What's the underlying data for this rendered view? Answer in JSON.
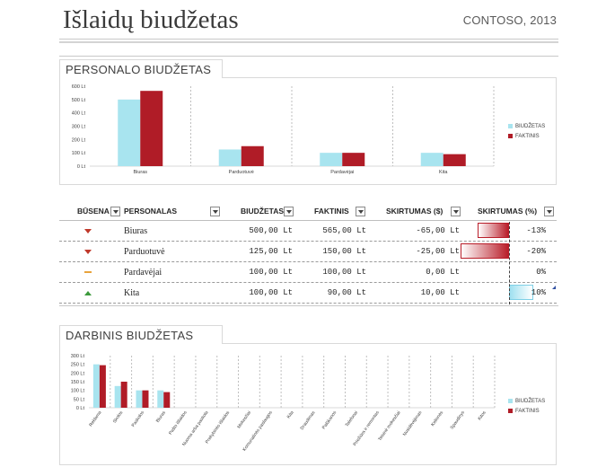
{
  "header": {
    "title": "Išlaidų biudžetas",
    "subtitle": "CONTOSO, 2013"
  },
  "colors": {
    "budget": "#a8e4ef",
    "actual": "#b01c27",
    "status_down": "#c0392b",
    "status_flat": "#e8a33d",
    "status_up": "#3c9a3c"
  },
  "personal_section": {
    "heading": "PERSONALO BIUDŽETAS"
  },
  "personal_chart": {
    "legend": [
      "BIUDŽETAS",
      "FAKTINIS"
    ]
  },
  "table": {
    "headers": {
      "status": "BŪSENA",
      "personnel": "PERSONALAS",
      "budget": "BIUDŽETAS",
      "actual": "FAKTINIS",
      "diff": "SKIRTUMAS ($)",
      "diff_pct": "SKIRTUMAS (%)"
    },
    "rows": [
      {
        "status": "down",
        "name": "Biuras",
        "budget": "500,00 Lt",
        "actual": "565,00 Lt",
        "diff": "-65,00 Lt",
        "pct": "-13%",
        "pct_value": -13
      },
      {
        "status": "down",
        "name": "Parduotuvė",
        "budget": "125,00 Lt",
        "actual": "150,00 Lt",
        "diff": "-25,00 Lt",
        "pct": "-20%",
        "pct_value": -20
      },
      {
        "status": "flat",
        "name": "Pardavėjai",
        "budget": "100,00 Lt",
        "actual": "100,00 Lt",
        "diff": "0,00 Lt",
        "pct": "0%",
        "pct_value": 0
      },
      {
        "status": "up",
        "name": "Kita",
        "budget": "100,00 Lt",
        "actual": "90,00 Lt",
        "diff": "10,00 Lt",
        "pct": "10%",
        "pct_value": 10
      }
    ]
  },
  "operating_section": {
    "heading": "DARBINIS BIUDŽETAS"
  },
  "operating_chart": {
    "legend": [
      "BIUDŽETAS",
      "FAKTINIS"
    ]
  },
  "chart_data": [
    {
      "type": "bar",
      "categories": [
        "Biuras",
        "Parduotuvė",
        "Pardavėjai",
        "Kita"
      ],
      "series": [
        {
          "name": "BIUDŽETAS",
          "values": [
            500,
            125,
            100,
            100
          ]
        },
        {
          "name": "FAKTINIS",
          "values": [
            565,
            150,
            100,
            90
          ]
        }
      ],
      "ylim": [
        0,
        600
      ],
      "yticks": [
        "600 Lt",
        "500 Lt",
        "400 Lt",
        "300 Lt",
        "200 Lt",
        "100 Lt",
        "0 Lt"
      ],
      "grid": false,
      "legend": "right"
    },
    {
      "type": "bar",
      "categories": [
        "Reklama",
        "Skolos",
        "Paskolos",
        "Biuras",
        "Pašto išlaidos",
        "Nuoma arba paskola",
        "Prekybinės išlaidos",
        "Mokesčiai",
        "Komunalinės paslaugos",
        "Kita",
        "Draudimas",
        "Palūkanos",
        "Telefonai",
        "Priežiūra ir remontas",
        "Teisinė mokesčiai",
        "Nusidėvėjimas",
        "Kelionės",
        "Spaudinys",
        "Kitos"
      ],
      "series": [
        {
          "name": "BIUDŽETAS",
          "values": [
            250,
            125,
            100,
            100,
            0,
            0,
            0,
            0,
            0,
            0,
            0,
            0,
            0,
            0,
            0,
            0,
            0,
            0,
            0
          ]
        },
        {
          "name": "FAKTINIS",
          "values": [
            245,
            150,
            100,
            90,
            0,
            0,
            0,
            0,
            0,
            0,
            0,
            0,
            0,
            0,
            0,
            0,
            0,
            0,
            0
          ]
        }
      ],
      "ylim": [
        0,
        300
      ],
      "yticks": [
        "300 Lt",
        "250 Lt",
        "200 Lt",
        "150 Lt",
        "100 Lt",
        "50 Lt",
        "0 Lt"
      ],
      "grid": false,
      "legend": "right"
    }
  ]
}
